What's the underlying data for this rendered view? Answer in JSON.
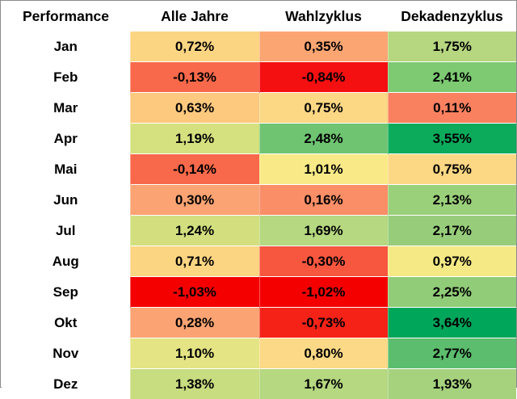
{
  "chart_data": {
    "type": "table",
    "title": "",
    "corner_label": "Performance",
    "columns": [
      "Alle Jahre",
      "Wahlzyklus",
      "Dekadenzyklus"
    ],
    "rows": [
      {
        "month": "Jan",
        "values": [
          "0,72%",
          "0,35%",
          "1,75%"
        ],
        "colors": [
          "#fcd583",
          "#fba572",
          "#b6d680"
        ]
      },
      {
        "month": "Feb",
        "values": [
          "-0,13%",
          "-0,84%",
          "2,41%"
        ],
        "colors": [
          "#f8694b",
          "#f40f10",
          "#7dca72"
        ]
      },
      {
        "month": "Mar",
        "values": [
          "0,63%",
          "0,75%",
          "0,11%"
        ],
        "colors": [
          "#fcc97e",
          "#fcd784",
          "#fa8160"
        ]
      },
      {
        "month": "Apr",
        "values": [
          "1,19%",
          "2,48%",
          "3,55%"
        ],
        "colors": [
          "#d5e07e",
          "#6fc472",
          "#0bab5b"
        ]
      },
      {
        "month": "Mai",
        "values": [
          "-0,14%",
          "1,01%",
          "0,75%"
        ],
        "colors": [
          "#f8694b",
          "#f9ea87",
          "#fcd784"
        ]
      },
      {
        "month": "Jun",
        "values": [
          "0,30%",
          "0,16%",
          "2,13%"
        ],
        "colors": [
          "#fba372",
          "#fa8e67",
          "#9bd07b"
        ]
      },
      {
        "month": "Jul",
        "values": [
          "1,24%",
          "1,69%",
          "2,17%"
        ],
        "colors": [
          "#d3df7f",
          "#b5d880",
          "#97cd7a"
        ]
      },
      {
        "month": "Aug",
        "values": [
          "0,71%",
          "-0,30%",
          "0,97%"
        ],
        "colors": [
          "#fcd583",
          "#f7563f",
          "#f5e985"
        ]
      },
      {
        "month": "Sep",
        "values": [
          "-1,03%",
          "-1,02%",
          "2,25%"
        ],
        "colors": [
          "#f40000",
          "#f40000",
          "#91cc78"
        ]
      },
      {
        "month": "Okt",
        "values": [
          "0,28%",
          "-0,73%",
          "3,64%"
        ],
        "colors": [
          "#fba372",
          "#f52217",
          "#00a65a"
        ]
      },
      {
        "month": "Nov",
        "values": [
          "1,10%",
          "0,80%",
          "2,77%"
        ],
        "colors": [
          "#e4e484",
          "#fcd986",
          "#5cbd6e"
        ]
      },
      {
        "month": "Dez",
        "values": [
          "1,38%",
          "1,67%",
          "1,93%"
        ],
        "colors": [
          "#c8dc80",
          "#b5d880",
          "#a6d27e"
        ]
      }
    ]
  }
}
